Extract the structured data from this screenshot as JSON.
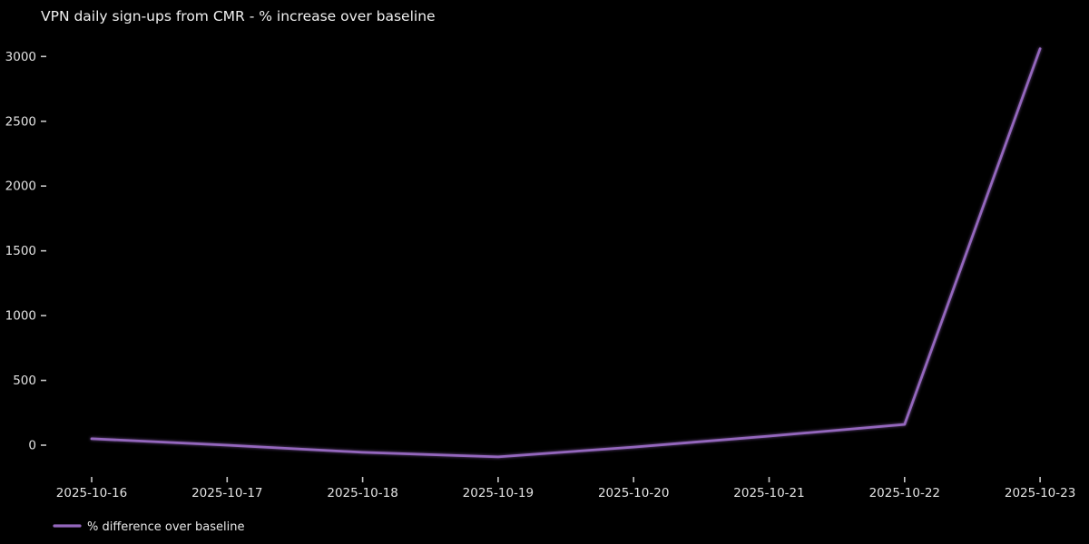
{
  "title": "VPN daily sign-ups from CMR - % increase over baseline",
  "colors": {
    "background": "#000000",
    "text": "#e8e8e8",
    "line": "#9467bd"
  },
  "legend": {
    "label": "% difference over baseline"
  },
  "chart_data": {
    "type": "line",
    "title": "VPN daily sign-ups from CMR - % increase over baseline",
    "x": [
      "2025-10-16",
      "2025-10-17",
      "2025-10-18",
      "2025-10-19",
      "2025-10-20",
      "2025-10-21",
      "2025-10-22",
      "2025-10-23"
    ],
    "series": [
      {
        "name": "% difference over baseline",
        "values": [
          50,
          0,
          -55,
          -90,
          -15,
          70,
          160,
          3060
        ],
        "color": "#9467bd"
      }
    ],
    "xlabel": "",
    "ylabel": "",
    "ylim": [
      -270,
      3160
    ],
    "yticks": [
      0,
      500,
      1000,
      1500,
      2000,
      2500,
      3000
    ],
    "grid": false,
    "legend_position": "lower-left",
    "background": "#000000"
  }
}
